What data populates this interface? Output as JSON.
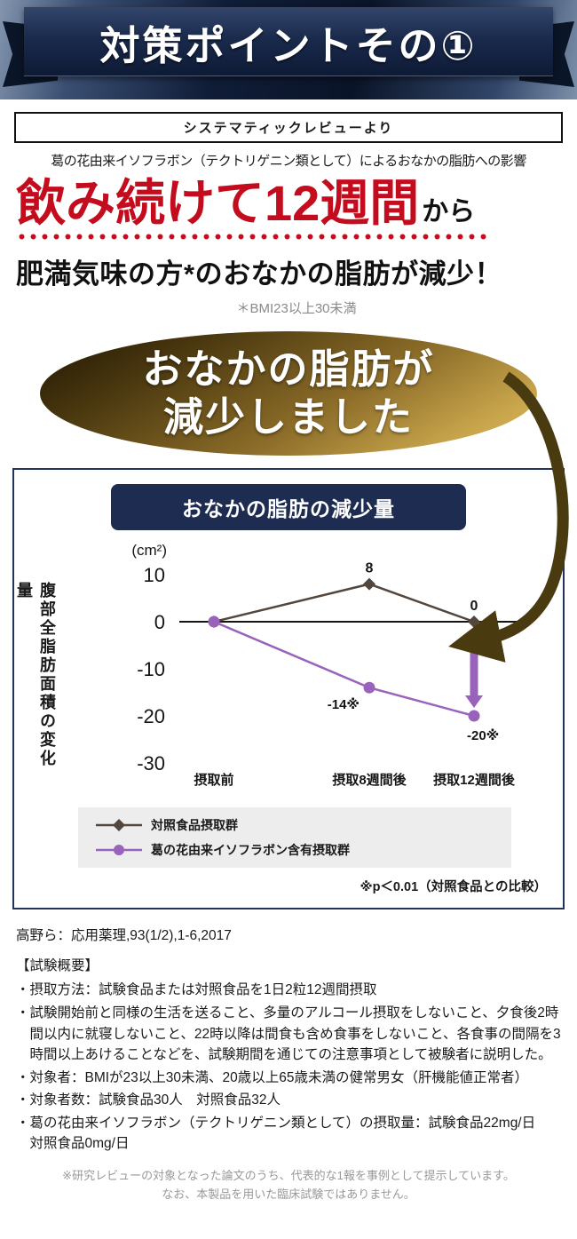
{
  "colors": {
    "red": "#c30d1e",
    "navy": "#1d2c50",
    "purple": "#9a63bb",
    "control": "#52463d",
    "brown": "#493a10",
    "gray-note": "#8a8a8a"
  },
  "banner": {
    "title": "対策ポイントその①"
  },
  "review": {
    "box_label": "システマティックレビューより",
    "subtitle": "葛の花由来イソフラボン（テクトリゲニン類として）によるおなかの脂肪への影響"
  },
  "headline": {
    "red": "飲み続けて12週間",
    "suffix": "から",
    "line2": "肥満気味の方*のおなかの脂肪が減少！",
    "note": "＊BMI23以上30未満"
  },
  "badge": {
    "line1": "おなかの脂肪が",
    "line2": "減少しました"
  },
  "chart_data": {
    "type": "line",
    "title": "おなかの脂肪の減少量",
    "unit": "(cm²)",
    "ylabel": "腹部全脂肪面積の変化量",
    "ylim": [
      -30,
      10
    ],
    "yticks": [
      10,
      0,
      -10,
      -20,
      -30
    ],
    "categories": [
      "摂取前",
      "摂取8週間後",
      "摂取12週間後"
    ],
    "series": [
      {
        "name": "対照食品摂取群",
        "marker": "diamond",
        "color": "#52463d",
        "values": [
          0,
          8,
          0
        ],
        "labels": [
          "",
          "8",
          "0"
        ],
        "label_side": "above"
      },
      {
        "name": "葛の花由来イソフラボン含有摂取群",
        "marker": "circle",
        "color": "#9a63bb",
        "values": [
          0,
          -14,
          -20
        ],
        "labels": [
          "",
          "-14※",
          "-20※"
        ],
        "label_side": "below"
      }
    ],
    "arrow": {
      "category_index": 2,
      "from": 0,
      "to": -20,
      "color": "#9a63bb"
    },
    "note": "※p＜0.01（対照食品との比較）",
    "legend_position": "bottom"
  },
  "study": {
    "reference": "高野ら：応用薬理,93(1/2),1-6,2017",
    "title": "【試験概要】",
    "items": [
      "・摂取方法：試験食品または対照食品を1日2粒12週間摂取",
      "・試験開始前と同様の生活を送ること、多量のアルコール摂取をしないこと、夕食後2時間以内に就寝しないこと、22時以降は間食も含め食事をしないこと、各食事の間隔を3時間以上あけることなどを、試験期間を通じての注意事項として被験者に説明した。",
      "・対象者：BMIが23以上30未満、20歳以上65歳未満の健常男女（肝機能値正常者）",
      "・対象者数：試験食品30人　対照食品32人",
      "・葛の花由来イソフラボン（テクトリゲニン類として）の摂取量：試験食品22mg/日　対照食品0mg/日"
    ]
  },
  "footer": {
    "line1": "※研究レビューの対象となった論文のうち、代表的な1報を事例として提示しています。",
    "line2": "なお、本製品を用いた臨床試験ではありません。"
  }
}
